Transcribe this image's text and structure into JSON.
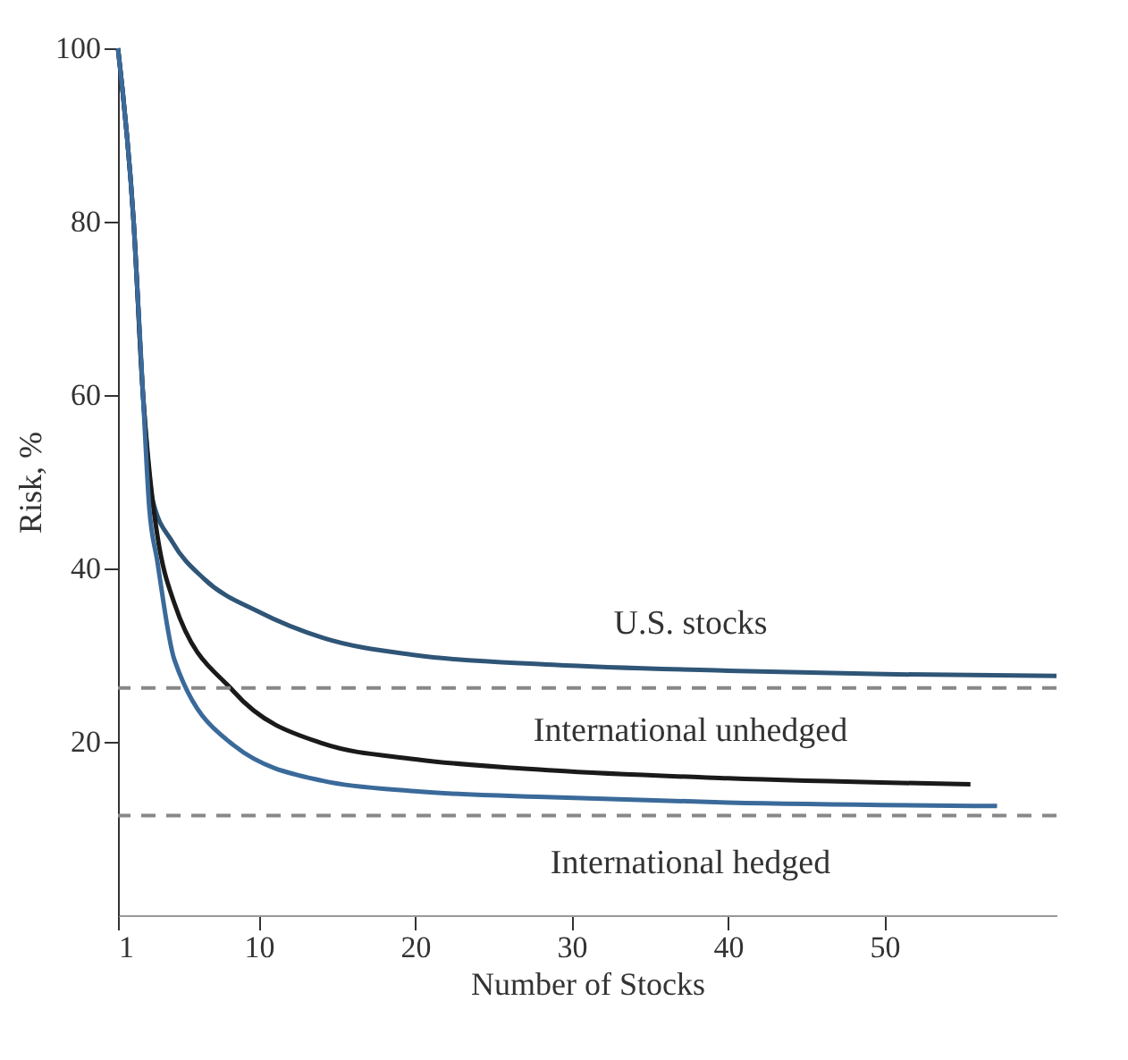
{
  "chart_data": {
    "type": "line",
    "xlabel": "Number of Stocks",
    "ylabel": "Risk, %",
    "xlim": [
      1,
      61
    ],
    "xticks": [
      1,
      10,
      20,
      30,
      40,
      50
    ],
    "ylim": [
      0,
      100
    ],
    "yticks": [
      20,
      40,
      60,
      80,
      100
    ],
    "grid": false,
    "marker": "none",
    "line_style": "solid",
    "series": [
      {
        "name": "U.S. stocks",
        "color": "#2f5577",
        "x": [
          1,
          2,
          2.6,
          3.2,
          4.5,
          6.5,
          10,
          14.1,
          20,
          28.8,
          40,
          50,
          61
        ],
        "values": [
          100,
          80,
          60,
          48,
          43,
          38.8,
          35,
          32,
          30,
          28.9,
          28.2,
          27.8,
          27.6
        ]
      },
      {
        "name": "International unhedged",
        "color": "#1a1a1a",
        "x": [
          1,
          2,
          2.6,
          3.2,
          3.5,
          4.6,
          8.4,
          14.1,
          20,
          28.8,
          40,
          55.5
        ],
        "values": [
          100,
          80,
          60,
          48,
          44,
          36,
          25.8,
          19.8,
          18,
          16.7,
          15.8,
          15.1
        ]
      },
      {
        "name": "International hedged",
        "color": "#3a6a9a",
        "x": [
          1,
          2,
          2.6,
          3,
          3.5,
          4.6,
          8.4,
          14.1,
          20,
          28.8,
          40,
          57.2
        ],
        "values": [
          100,
          80,
          60,
          47,
          41,
          29.5,
          19.6,
          15.5,
          14.3,
          13.6,
          13,
          12.6
        ]
      }
    ],
    "ref_lines": [
      {
        "axis": "y",
        "value": 26.2,
        "color": "#888888",
        "line_style": "dashed"
      },
      {
        "axis": "y",
        "value": 11.5,
        "color": "#888888",
        "line_style": "dashed"
      }
    ]
  }
}
